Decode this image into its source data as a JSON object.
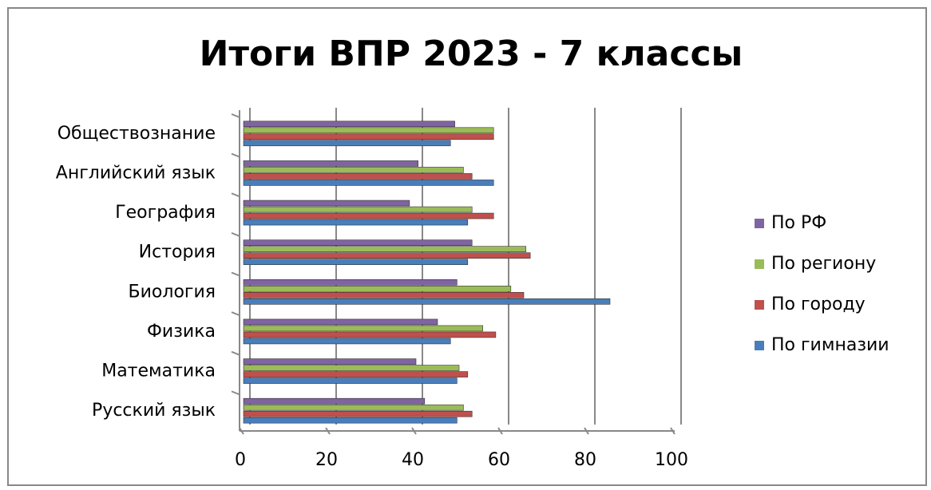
{
  "chart_data": {
    "type": "bar",
    "orientation": "horizontal",
    "title": "Итоги ВПР 2023 - 7 классы",
    "categories": [
      "Русский язык",
      "Математика",
      "Физика",
      "Биология",
      "История",
      "География",
      "Английский язык",
      "Обществознание"
    ],
    "series": [
      {
        "name": "По гимназии",
        "color": "#4a7ebb",
        "values": [
          49.5,
          49.5,
          48,
          85,
          52,
          52,
          58,
          48
        ]
      },
      {
        "name": "По городу",
        "color": "#c0504d",
        "values": [
          53,
          52,
          58.5,
          65,
          66.5,
          58,
          53,
          58
        ]
      },
      {
        "name": "По региону",
        "color": "#9bbb59",
        "values": [
          51,
          50,
          55.5,
          62,
          65.5,
          53,
          51,
          58
        ]
      },
      {
        "name": "По РФ",
        "color": "#8064a2",
        "values": [
          42,
          40,
          45,
          49.5,
          53,
          38.5,
          40.5,
          49
        ]
      }
    ],
    "xlim": [
      0,
      100
    ],
    "xticks": [
      0,
      20,
      40,
      60,
      80,
      100
    ],
    "grid": true,
    "legend": "right"
  }
}
